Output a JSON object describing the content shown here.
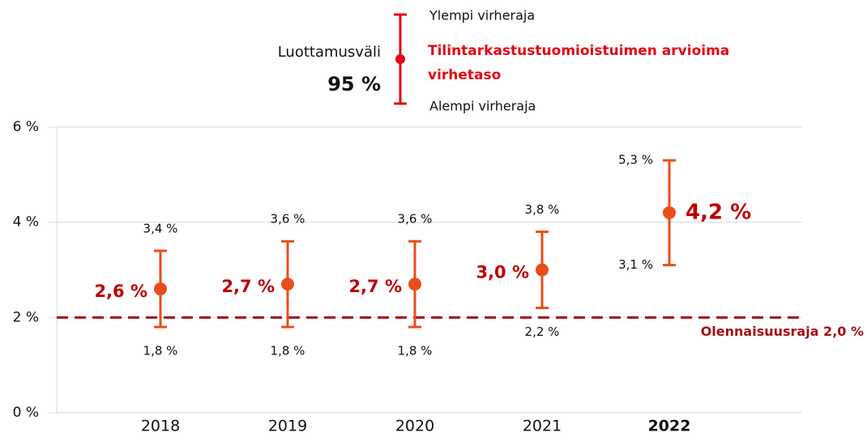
{
  "chart_data": {
    "type": "errorbar",
    "categories": [
      "2018",
      "2019",
      "2020",
      "2021",
      "2022"
    ],
    "highlight_index": 4,
    "values": [
      2.6,
      2.7,
      2.7,
      3.0,
      4.2
    ],
    "value_labels": [
      "2,6 %",
      "2,7 %",
      "2,7 %",
      "3,0 %",
      "4,2 %"
    ],
    "upper": [
      3.4,
      3.6,
      3.6,
      3.8,
      5.3
    ],
    "upper_labels": [
      "3,4 %",
      "3,6 %",
      "3,6 %",
      "3,8 %",
      "5,3 %"
    ],
    "lower": [
      1.8,
      1.8,
      1.8,
      2.2,
      3.1
    ],
    "lower_labels": [
      "1,8 %",
      "1,8 %",
      "1,8 %",
      "2,2 %",
      "3,1 %"
    ],
    "color": "#e84e1b",
    "label_color": "#c00000",
    "ylim": [
      0,
      6
    ],
    "yticks": [
      {
        "value": 0,
        "label": "0 %"
      },
      {
        "value": 2,
        "label": "2 %"
      },
      {
        "value": 4,
        "label": "4 %"
      },
      {
        "value": 6,
        "label": "6 %"
      }
    ],
    "grid": true,
    "threshold": {
      "value": 2.0,
      "label": "Olennaisuusraja 2,0 %",
      "color": "#a50f15"
    },
    "legend": {
      "title": "Luottamusväli",
      "level": "95 %",
      "upper": "Ylempi virheraja",
      "point": "Tilintarkastustuomioistuimen arvioima virhetaso",
      "lower": "Alempi virheraja"
    }
  }
}
